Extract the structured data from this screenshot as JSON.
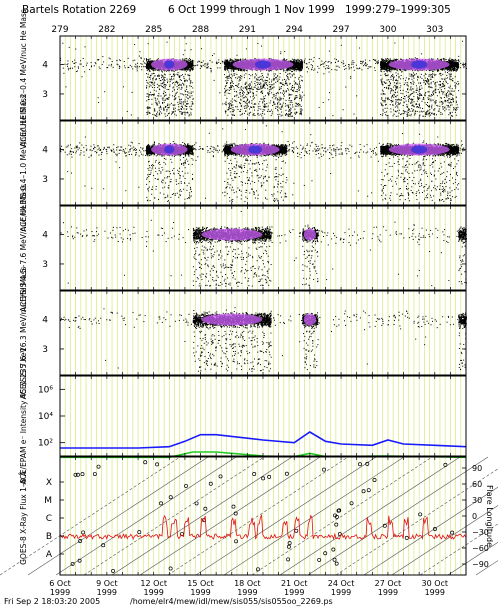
{
  "header": {
    "title": "Bartels Rotation 2269",
    "date_range": "6 Oct 1999 through 1 Nov 1999",
    "doy_range": "1999:279–1999:305"
  },
  "footer": {
    "timestamp": "Fri Sep  2 18:03:20 2005",
    "path": "/home/elr4/mew/idl/mew/sis055/sis055oo_2269.ps"
  },
  "colors": {
    "grid": "#d7e879",
    "blue_trace": "#1a1aff",
    "green_trace": "#22cc22",
    "red_trace": "#e01010",
    "core_magenta": "#d060ff",
    "core_blue": "#3030e0"
  },
  "chart_data": [
    {
      "type": "scatter",
      "ylabel": "ACE/ULEIS 0.2–0.4 MeV/nuc He Mass",
      "yticks": [
        "4",
        "3"
      ],
      "x_start_doy": 279,
      "x_end_doy": 305,
      "band_center": 4,
      "enhancements_doy": [
        [
          284.5,
          287.5
        ],
        [
          289.5,
          294.5
        ],
        [
          299.5,
          304.5
        ]
      ]
    },
    {
      "type": "scatter",
      "ylabel": "ACE/ULEIS 0.4–1.0 MeV/nuc He Mass",
      "yticks": [
        "4",
        "3"
      ],
      "x_start_doy": 279,
      "x_end_doy": 305,
      "band_center": 4,
      "enhancements_doy": [
        [
          284.5,
          287.5
        ],
        [
          289.5,
          293.5
        ],
        [
          299.5,
          304.5
        ]
      ]
    },
    {
      "type": "scatter",
      "ylabel": "ACE/SIS 4.5–7.6 MeV/nuc He Mass",
      "yticks": [
        "4",
        "3"
      ],
      "x_start_doy": 279,
      "x_end_doy": 305,
      "band_center": 4,
      "enhancements_doy": [
        [
          287.5,
          292.5
        ],
        [
          294.5,
          295.5
        ],
        [
          304.5,
          305
        ]
      ]
    },
    {
      "type": "scatter",
      "ylabel": "ACE/SIS 7.6–16.3 MeV/nuc He Mass",
      "yticks": [
        "4",
        "3"
      ],
      "x_start_doy": 279,
      "x_end_doy": 305,
      "band_center": 4,
      "enhancements_doy": [
        [
          287.5,
          292.5
        ],
        [
          294.5,
          295.5
        ],
        [
          304.5,
          305
        ]
      ]
    },
    {
      "type": "line",
      "ylabel": "ACE/EPAM e⁻ Intensity 45 & 235 keV",
      "yscale": "log",
      "yticks": [
        "10⁶",
        "10⁴",
        "10²"
      ],
      "ylim_exp": [
        1,
        7
      ],
      "series": [
        {
          "x": [
            279,
            284,
            286,
            287,
            288,
            289,
            292,
            294,
            295,
            296,
            297,
            299,
            300,
            301,
            303,
            305
          ],
          "y_exp": [
            1.6,
            1.6,
            1.7,
            2.1,
            2.6,
            2.6,
            2.2,
            2.0,
            2.8,
            2.1,
            1.9,
            1.8,
            2.2,
            1.9,
            1.8,
            1.7
          ]
        },
        {
          "x": [
            279,
            286,
            287.5,
            289,
            292,
            294,
            295,
            296,
            300,
            305
          ],
          "y_exp": [
            0.9,
            0.9,
            1.3,
            1.3,
            1.0,
            0.95,
            1.2,
            0.95,
            1.0,
            0.9
          ]
        }
      ]
    },
    {
      "type": "line",
      "ylabel": "GOES-8 X-Ray Flux 1–8 Å",
      "yticks_left": [
        "X",
        "M",
        "C",
        "B",
        "A"
      ],
      "yticks_right": [
        "90",
        "60",
        "30",
        "0",
        "−30",
        "−60",
        "−90"
      ],
      "ylabel_right": "Flare Longitude",
      "baseline_level": "B",
      "spikes_doy": [
        285.7,
        286.3,
        287.1,
        288.2,
        290.1,
        291.3,
        291.8,
        293.4,
        294.2,
        295.0,
        298.8,
        300.2,
        301.2,
        302.4
      ]
    }
  ],
  "xaxis": {
    "top_doy_labels": [
      "279",
      "282",
      "285",
      "288",
      "291",
      "294",
      "297",
      "300",
      "303"
    ],
    "bottom_date_labels": [
      [
        "6 Oct",
        "1999"
      ],
      [
        "9 Oct",
        "1999"
      ],
      [
        "12 Oct",
        "1999"
      ],
      [
        "15 Oct",
        "1999"
      ],
      [
        "18 Oct",
        "1999"
      ],
      [
        "21 Oct",
        "1999"
      ],
      [
        "24 Oct",
        "1999"
      ],
      [
        "27 Oct",
        "1999"
      ],
      [
        "30 Oct",
        "1999"
      ]
    ]
  }
}
